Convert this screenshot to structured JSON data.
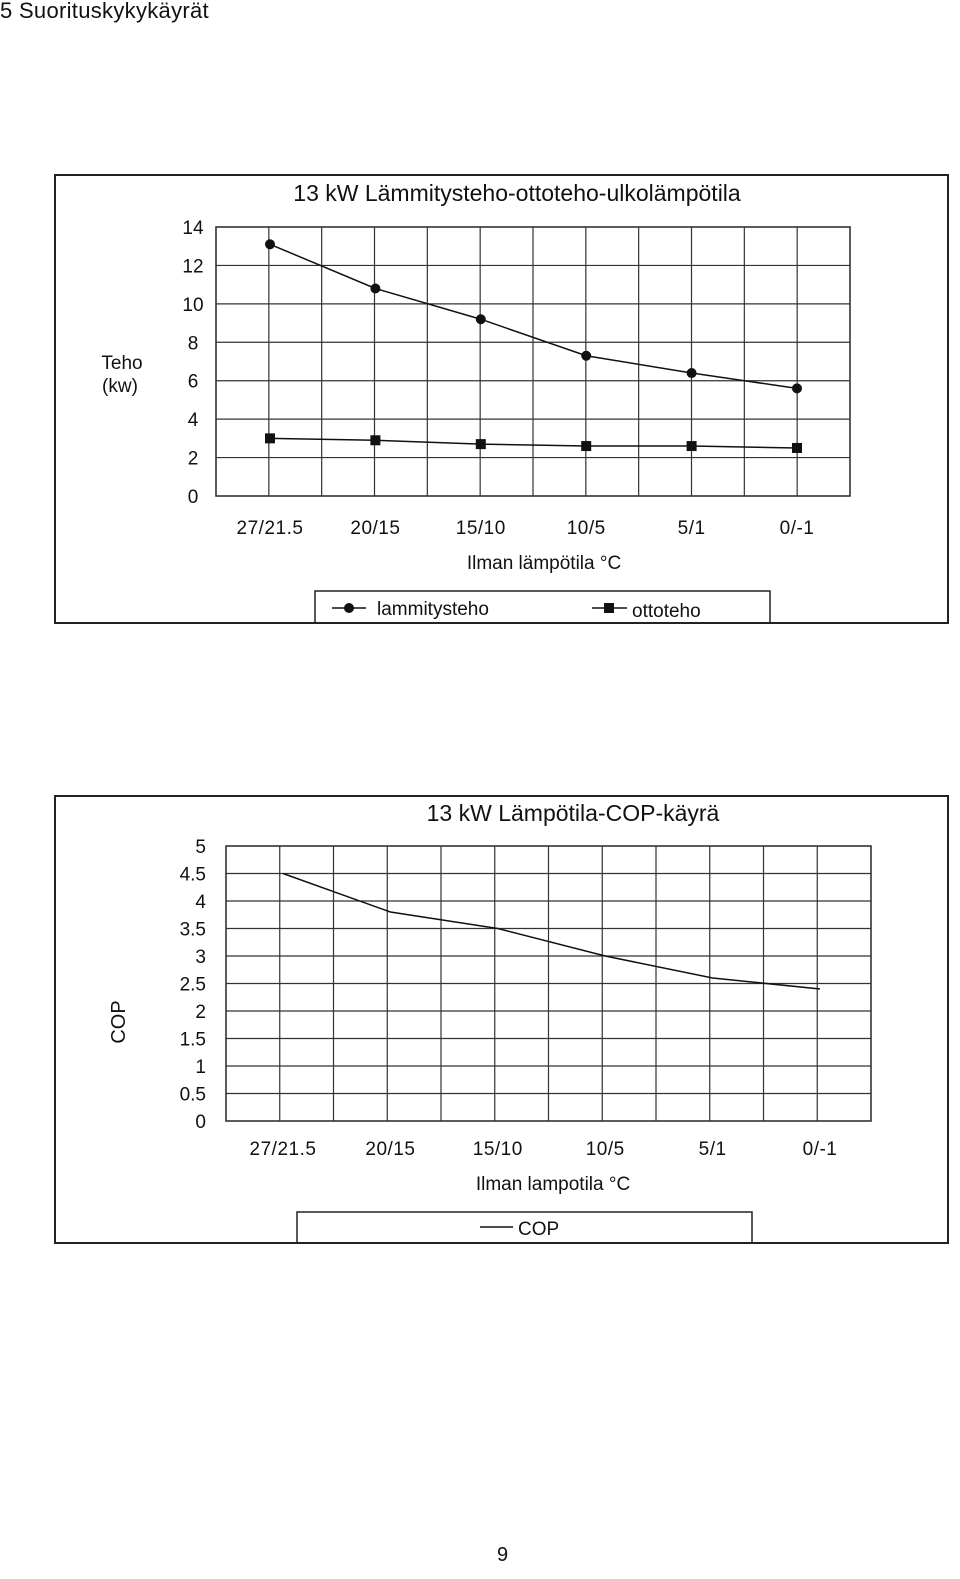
{
  "page": {
    "heading": "5 Suorituskykykäyrät",
    "page_number": "9"
  },
  "chart_data": [
    {
      "type": "line",
      "title": "13 kW Lämmitysteho-ottoteho-ulkolämpötila",
      "xlabel": "Ilman lämpötila °C",
      "ylabel_line1": "Teho",
      "ylabel_line2": "(kw)",
      "categories": [
        "27/21.5",
        "20/15",
        "15/10",
        "10/5",
        "5/1",
        "0/-1"
      ],
      "yticks": [
        "0",
        "2",
        "4",
        "6",
        "8",
        "10",
        "12",
        "14"
      ],
      "ylim": [
        0,
        14
      ],
      "grid": true,
      "legend_position": "bottom",
      "series": [
        {
          "name": "lammitysteho",
          "marker": "circle",
          "values": [
            13.1,
            10.8,
            9.2,
            7.3,
            6.4,
            5.6
          ]
        },
        {
          "name": "ottoteho",
          "marker": "square",
          "values": [
            3.0,
            2.9,
            2.7,
            2.6,
            2.6,
            2.5
          ]
        }
      ]
    },
    {
      "type": "line",
      "title": "13 kW Lämpötila-COP-käyrä",
      "xlabel": "Ilman lampotila °C",
      "ylabel": "COP",
      "categories": [
        "27/21.5",
        "20/15",
        "15/10",
        "10/5",
        "5/1",
        "0/-1"
      ],
      "yticks": [
        "0",
        "0.5",
        "1",
        "1.5",
        "2",
        "2.5",
        "3",
        "3.5",
        "4",
        "4.5",
        "5"
      ],
      "ylim": [
        0,
        5
      ],
      "grid": true,
      "legend_position": "bottom",
      "series": [
        {
          "name": "COP",
          "marker": "none",
          "values": [
            4.5,
            3.8,
            3.5,
            3.0,
            2.6,
            2.4
          ]
        }
      ]
    }
  ]
}
